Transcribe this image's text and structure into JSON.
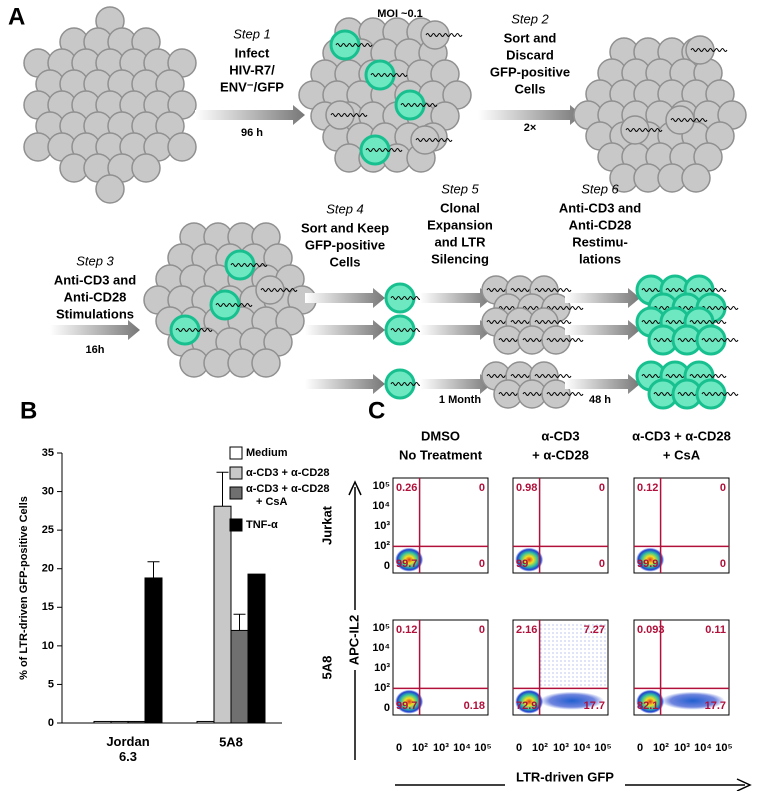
{
  "panel_a": {
    "label": "A",
    "moi": "MOI ~0.1",
    "steps": [
      {
        "step": "Step 1",
        "lines": [
          "Infect",
          "HIV-R7/",
          "ENV⁻/GFP"
        ],
        "time": "96 h"
      },
      {
        "step": "Step 2",
        "lines": [
          "Sort and",
          "Discard",
          "GFP-positive",
          "Cells"
        ],
        "time": "2×"
      },
      {
        "step": "Step 3",
        "lines": [
          "Anti-CD3 and",
          "Anti-CD28",
          "Stimulations"
        ],
        "time": "16h"
      },
      {
        "step": "Step 4",
        "lines": [
          "Sort and Keep",
          "GFP-positive",
          "Cells"
        ]
      },
      {
        "step": "Step 5",
        "lines": [
          "Clonal",
          "Expansion",
          "and LTR",
          "Silencing"
        ],
        "time": "1 Month"
      },
      {
        "step": "Step 6",
        "lines": [
          "Anti-CD3 and",
          "Anti-CD28",
          "Restimu-",
          "lations"
        ],
        "time": "48 h"
      }
    ]
  },
  "chart_data": {
    "type": "bar",
    "label": "B",
    "y_label": "% of LTR-driven GFP-positive Cells",
    "categories": [
      "Jordan 6.3",
      "5A8"
    ],
    "series": [
      {
        "name": "Medium",
        "color": "#ffffff",
        "values": [
          0.2,
          0.2
        ],
        "errors": [
          null,
          null
        ]
      },
      {
        "name": "α-CD3 + α-CD28",
        "color": "#c8c8c8",
        "values": [
          0.2,
          28.1
        ],
        "errors": [
          null,
          4.4
        ]
      },
      {
        "name": "α-CD3 + α-CD28 + CsA",
        "color": "#707070",
        "values": [
          0.2,
          12
        ],
        "errors": [
          null,
          2.1
        ]
      },
      {
        "name": "TNF-α",
        "color": "#000000",
        "values": [
          18.8,
          19.3
        ],
        "errors": [
          2.1,
          null
        ]
      }
    ],
    "ylim": [
      0,
      35
    ],
    "yticks": [
      0,
      5,
      10,
      15,
      20,
      25,
      30,
      35
    ]
  },
  "panel_c": {
    "label": "C",
    "columns": [
      [
        "DMSO",
        "No Treatment"
      ],
      [
        "α-CD3",
        "+ α-CD28"
      ],
      [
        "α-CD3 + α-CD28",
        "+ CsA"
      ]
    ],
    "rows": [
      "Jurkat",
      "5A8"
    ],
    "y_axis": "APC-IL2",
    "x_axis": "LTR-driven GFP",
    "yticks": [
      "10⁵",
      "10⁴",
      "10³",
      "10²",
      "0"
    ],
    "xticks": [
      "0",
      "10²",
      "10³",
      "10⁴",
      "10⁵"
    ],
    "plots": [
      [
        {
          "ul": 0.26,
          "ur": 0,
          "ll": 99.7,
          "lr": 0
        },
        {
          "ul": 0.98,
          "ur": 0,
          "ll": 99,
          "lr": 0
        },
        {
          "ul": 0.12,
          "ur": 0,
          "ll": 99.9,
          "lr": 0
        }
      ],
      [
        {
          "ul": 0.12,
          "ur": 0,
          "ll": 99.7,
          "lr": 0.18
        },
        {
          "ul": 2.16,
          "ur": 7.27,
          "ll": 72.9,
          "lr": 17.7
        },
        {
          "ul": 0.093,
          "ur": 0.11,
          "ll": 82.1,
          "lr": 17.7
        }
      ]
    ]
  }
}
